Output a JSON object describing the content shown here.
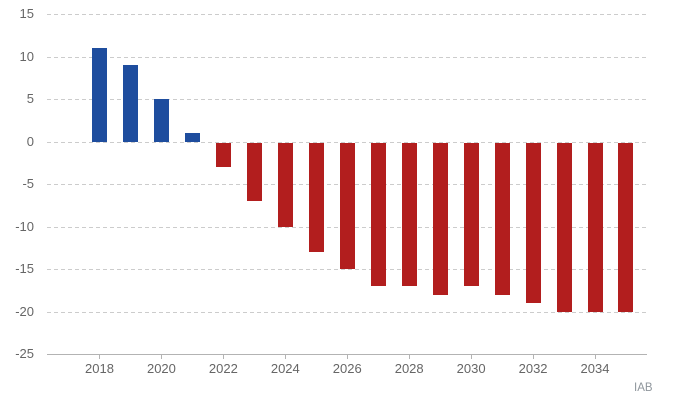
{
  "chart_data": {
    "type": "bar",
    "title": "",
    "xlabel": "",
    "ylabel": "",
    "categories": [
      "2018",
      "2019",
      "2020",
      "2021",
      "2022",
      "2023",
      "2024",
      "2025",
      "2026",
      "2027",
      "2028",
      "2029",
      "2030",
      "2031",
      "2032",
      "2033",
      "2034",
      "2035"
    ],
    "values": [
      11,
      9,
      5,
      1,
      -3,
      -7,
      -10,
      -13,
      -15,
      -17,
      -17,
      -18,
      -17,
      -18,
      -19,
      -20,
      -20,
      -20
    ],
    "ylim": [
      -25,
      15
    ],
    "yticks": [
      15,
      10,
      5,
      0,
      -5,
      -10,
      -15,
      -20,
      -25
    ],
    "xtick_labels": [
      "2018",
      "2020",
      "2022",
      "2024",
      "2026",
      "2028",
      "2030",
      "2032",
      "2034"
    ],
    "grid": "horizontal-dashed",
    "legend": null,
    "positive_color": "#1e4d9e",
    "negative_color": "#b21e1e",
    "grid_color": "#cccccc",
    "axis_color": "#b3b3b3",
    "tick_label_color": "#666666"
  },
  "footer": {
    "source_label": "IAB"
  }
}
